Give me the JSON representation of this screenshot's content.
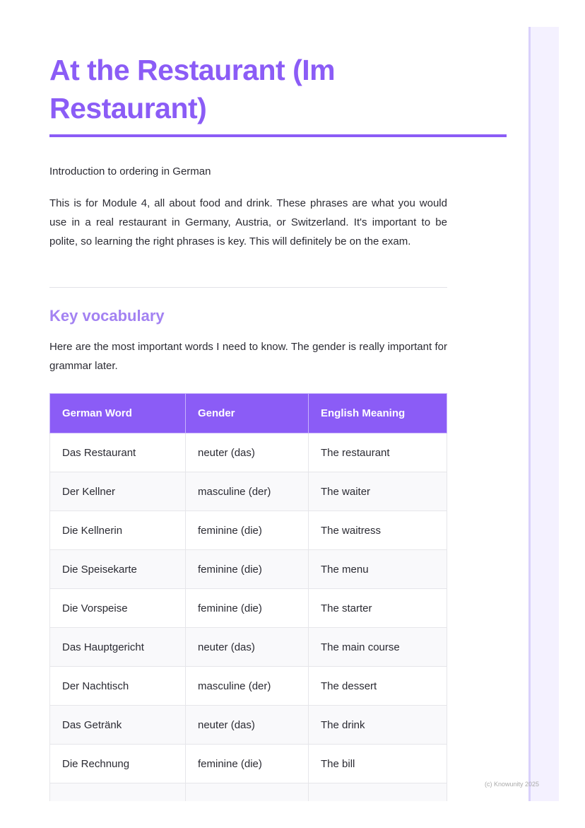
{
  "title": "At the Restaurant (Im Restaurant)",
  "intro": "Introduction to ordering in German",
  "paragraph1": "This is for Module 4, all about food and drink. These phrases are what you would use in a real restaurant in Germany, Austria, or Switzerland. It's important to be polite, so learning the right phrases is key. This will definitely be on the exam.",
  "section_heading": "Key vocabulary",
  "paragraph2": "Here are the most important words I need to know. The gender is really important for grammar later.",
  "table": {
    "headers": [
      "German Word",
      "Gender",
      "English Meaning"
    ],
    "rows": [
      [
        "Das Restaurant",
        "neuter (das)",
        "The restaurant"
      ],
      [
        "Der Kellner",
        "masculine (der)",
        "The waiter"
      ],
      [
        "Die Kellnerin",
        "feminine (die)",
        "The waitress"
      ],
      [
        "Die Speisekarte",
        "feminine (die)",
        "The menu"
      ],
      [
        "Die Vorspeise",
        "feminine (die)",
        "The starter"
      ],
      [
        "Das Hauptgericht",
        "neuter (das)",
        "The main course"
      ],
      [
        "Der Nachtisch",
        "masculine (der)",
        "The dessert"
      ],
      [
        "Das Getränk",
        "neuter (das)",
        "The drink"
      ],
      [
        "Die Rechnung",
        "feminine (die)",
        "The bill"
      ],
      [
        "",
        "",
        ""
      ]
    ]
  },
  "footer": "(c) Knowunity 2025",
  "colors": {
    "accent": "#8b5cf6",
    "heading2": "#a382f2",
    "sidebar": "#f4f1ff"
  }
}
